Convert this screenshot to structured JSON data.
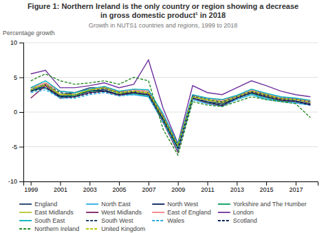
{
  "chart_data": {
    "type": "line",
    "title": [
      "Figure 1: Northern Ireland is the only country or region showing a decrease",
      "in gross domestic product¹ in 2018"
    ],
    "subtitle": "Growth in NUTS1 countries and regions, 1999 to 2018",
    "ylabel": "Percentage growth",
    "x": [
      1999,
      2000,
      2001,
      2002,
      2003,
      2004,
      2005,
      2006,
      2007,
      2008,
      2009,
      2010,
      2011,
      2012,
      2013,
      2014,
      2015,
      2016,
      2017,
      2018
    ],
    "series": [
      {
        "name": "England",
        "color": "#1a3a6b",
        "line_style": "solid",
        "values": [
          3.2,
          4.0,
          2.5,
          2.8,
          3.5,
          3.5,
          2.7,
          2.8,
          2.5,
          -1.0,
          -4.8,
          2.2,
          1.8,
          1.5,
          2.2,
          3.0,
          2.5,
          1.8,
          1.8,
          1.5
        ]
      },
      {
        "name": "North East",
        "color": "#29abe2",
        "line_style": "solid",
        "values": [
          3.5,
          3.5,
          2.0,
          2.5,
          3.2,
          3.0,
          2.5,
          2.5,
          2.2,
          -1.5,
          -5.0,
          1.8,
          1.2,
          1.0,
          1.8,
          2.5,
          1.8,
          1.5,
          1.3,
          1.0
        ]
      },
      {
        "name": "North West",
        "color": "#001f5b",
        "line_style": "solid",
        "values": [
          3.0,
          3.8,
          2.3,
          2.5,
          3.0,
          3.2,
          2.5,
          2.8,
          2.5,
          -1.2,
          -5.2,
          2.0,
          1.5,
          1.2,
          2.0,
          2.8,
          2.2,
          1.7,
          1.6,
          1.2
        ]
      },
      {
        "name": "Yorkshire and The Humber",
        "color": "#009b55",
        "line_style": "solid",
        "values": [
          3.0,
          3.5,
          2.2,
          2.3,
          3.0,
          3.0,
          2.5,
          2.7,
          2.3,
          -1.3,
          -5.3,
          2.0,
          1.4,
          1.0,
          2.0,
          2.7,
          2.0,
          1.6,
          1.5,
          1.1
        ]
      },
      {
        "name": "East Midlands",
        "color": "#b5c72a",
        "line_style": "solid",
        "values": [
          3.5,
          3.8,
          2.5,
          2.5,
          3.2,
          3.4,
          2.7,
          3.0,
          2.7,
          -0.8,
          -5.0,
          2.2,
          1.7,
          1.3,
          2.2,
          3.0,
          2.3,
          1.9,
          1.8,
          1.4
        ]
      },
      {
        "name": "West Midlands",
        "color": "#7b1e5e",
        "line_style": "solid",
        "values": [
          2.0,
          3.8,
          2.0,
          2.2,
          2.8,
          3.0,
          2.4,
          2.8,
          2.5,
          -1.5,
          -5.8,
          2.0,
          1.3,
          0.9,
          2.0,
          2.8,
          2.2,
          1.7,
          1.5,
          1.1
        ]
      },
      {
        "name": "East of England",
        "color": "#f08080",
        "line_style": "solid",
        "values": [
          3.5,
          4.2,
          3.0,
          2.8,
          3.3,
          3.6,
          2.9,
          3.2,
          3.0,
          -0.5,
          -4.7,
          2.4,
          2.0,
          1.7,
          2.3,
          3.2,
          2.6,
          2.0,
          1.9,
          1.6
        ]
      },
      {
        "name": "London",
        "color": "#7030a0",
        "line_style": "solid",
        "values": [
          5.5,
          6.0,
          3.5,
          3.5,
          3.8,
          4.2,
          3.5,
          4.0,
          7.5,
          0.5,
          -4.5,
          3.8,
          2.8,
          2.5,
          3.5,
          4.5,
          3.8,
          3.0,
          2.5,
          2.2
        ]
      },
      {
        "name": "South East",
        "color": "#00b0b9",
        "line_style": "solid",
        "values": [
          3.5,
          4.5,
          3.0,
          2.8,
          3.3,
          3.7,
          3.0,
          3.3,
          3.2,
          -0.3,
          -4.6,
          2.5,
          2.0,
          1.8,
          2.4,
          3.3,
          2.7,
          2.2,
          2.0,
          1.7
        ]
      },
      {
        "name": "South West",
        "color": "#1a3a6b",
        "line_style": "dashed",
        "values": [
          3.2,
          4.0,
          2.8,
          2.5,
          3.0,
          3.4,
          2.8,
          3.0,
          2.8,
          -0.7,
          -4.9,
          2.3,
          1.8,
          1.4,
          2.2,
          3.0,
          2.4,
          2.0,
          1.8,
          1.4
        ]
      },
      {
        "name": "Wales",
        "color": "#29abe2",
        "line_style": "dashed",
        "values": [
          2.8,
          3.2,
          2.0,
          2.0,
          2.5,
          2.8,
          2.3,
          2.5,
          2.3,
          -1.5,
          -5.5,
          1.8,
          1.2,
          0.8,
          1.8,
          2.5,
          2.0,
          1.5,
          1.3,
          1.0
        ]
      },
      {
        "name": "Scotland",
        "color": "#001f5b",
        "line_style": "dashed",
        "values": [
          3.0,
          3.5,
          2.2,
          2.2,
          2.7,
          3.0,
          2.5,
          2.8,
          2.5,
          -1.0,
          -5.2,
          2.0,
          1.5,
          1.0,
          2.0,
          2.8,
          2.2,
          1.8,
          1.5,
          1.0
        ]
      },
      {
        "name": "Northern Ireland",
        "color": "#228b22",
        "line_style": "dashed",
        "values": [
          4.5,
          5.5,
          4.5,
          4.0,
          4.2,
          4.5,
          4.0,
          5.0,
          4.5,
          -2.5,
          -6.2,
          1.5,
          1.0,
          0.8,
          1.5,
          2.2,
          1.8,
          1.5,
          1.2,
          -0.8
        ]
      },
      {
        "name": "United Kingdom",
        "color": "#b5c700",
        "line_style": "dashed",
        "values": [
          3.2,
          4.0,
          2.6,
          2.5,
          3.2,
          3.5,
          2.8,
          3.0,
          2.8,
          -0.8,
          -4.8,
          2.2,
          1.8,
          1.5,
          2.2,
          3.0,
          2.5,
          1.9,
          1.8,
          1.4
        ]
      }
    ],
    "xlim": [
      1998.5,
      2018.5
    ],
    "xticks": [
      1999,
      2001,
      2003,
      2005,
      2007,
      2009,
      2011,
      2013,
      2015,
      2017
    ],
    "ylim": [
      -10,
      10
    ],
    "yticks": [
      -10,
      -5,
      0,
      5,
      10
    ],
    "grid": true,
    "legend": "bottom"
  }
}
